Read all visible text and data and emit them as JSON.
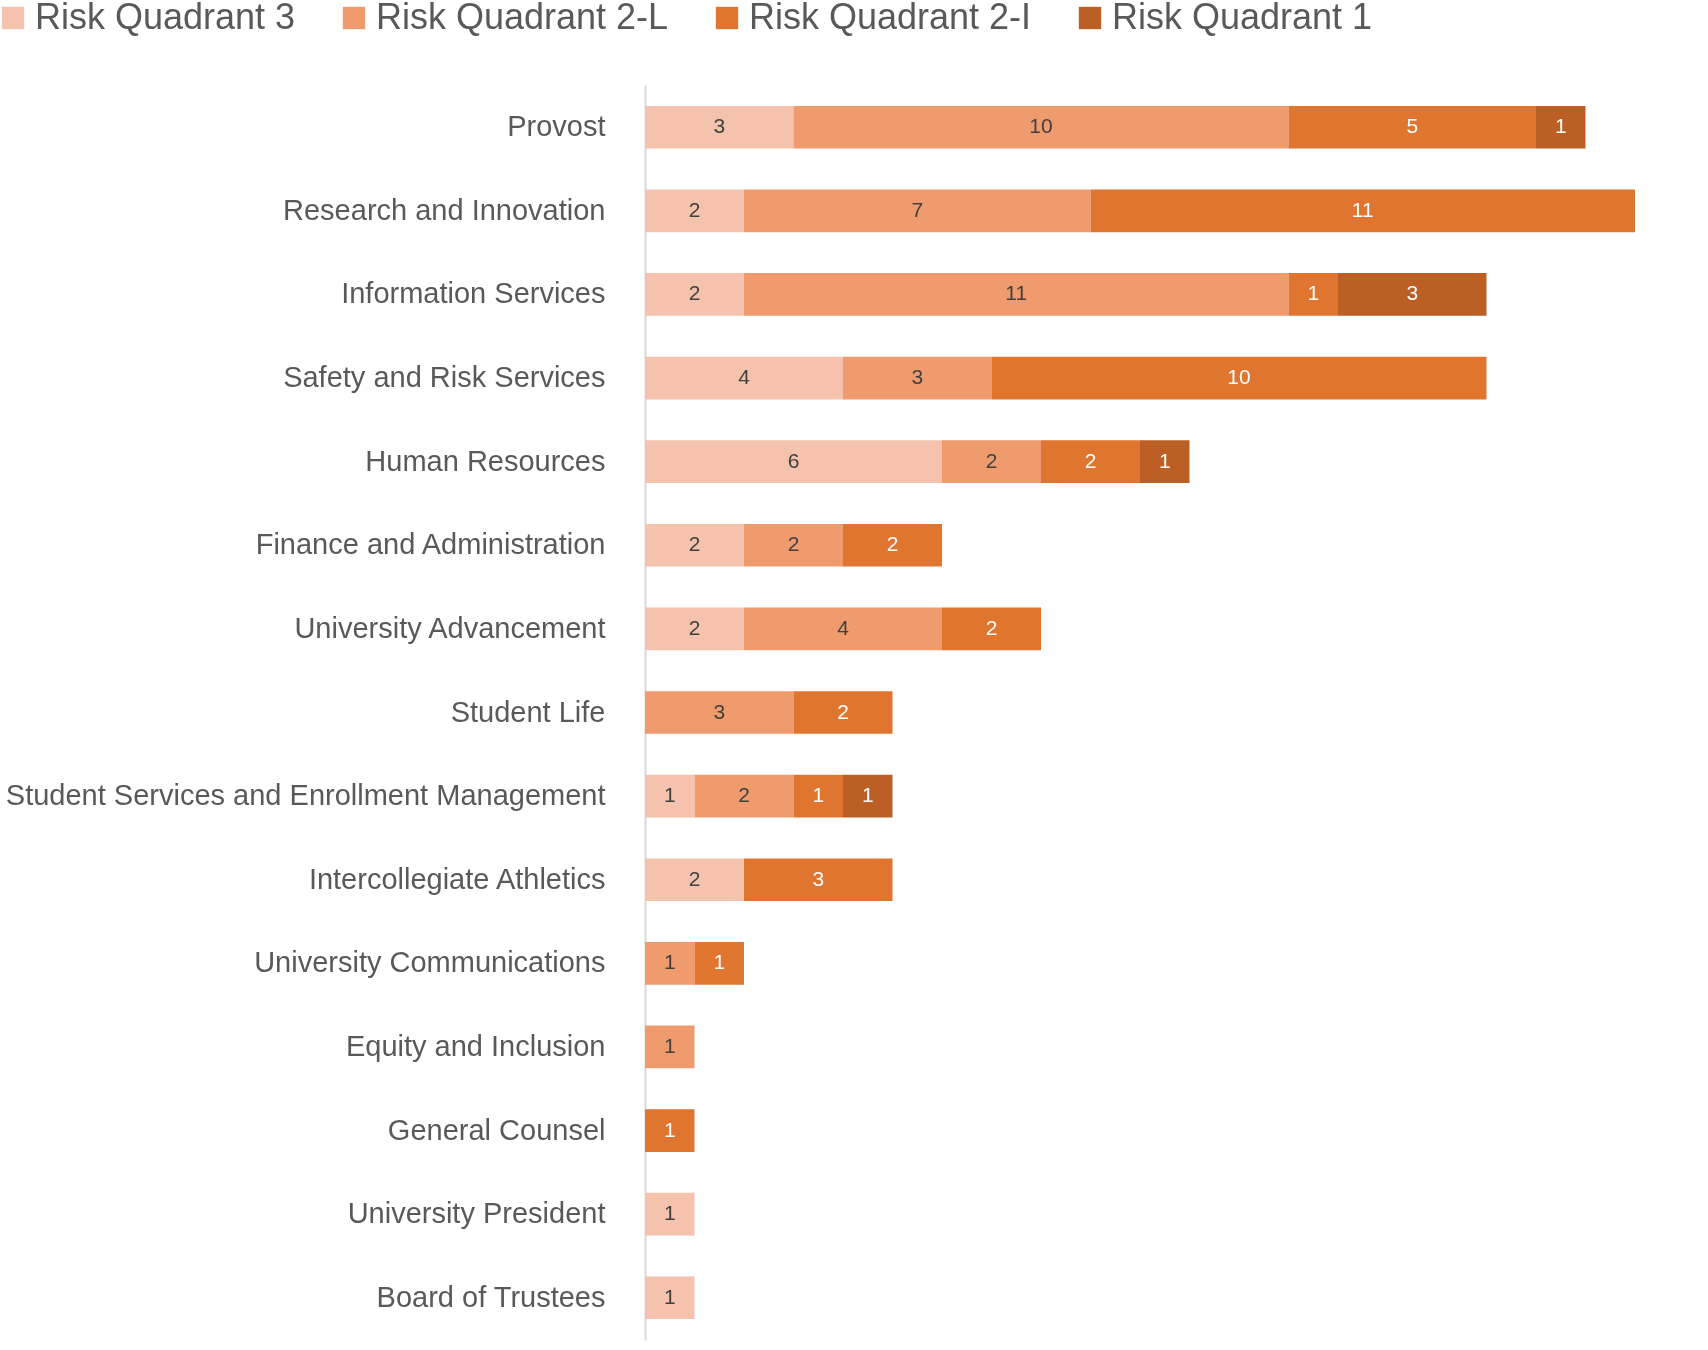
{
  "chart_data": {
    "type": "bar",
    "orientation": "horizontal",
    "stacked": true,
    "data_labels": true,
    "legend": "top",
    "grid": false,
    "categories": [
      "Provost",
      "Research and Innovation",
      "Information Services",
      "Safety and Risk Services",
      "Human Resources",
      "Finance and Administration",
      "University Advancement",
      "Student Life",
      "Student Services and Enrollment Management",
      "Intercollegiate Athletics",
      "University Communications",
      "Equity and Inclusion",
      "General Counsel",
      "University President",
      "Board of Trustees"
    ],
    "series": [
      {
        "name": "Risk Quadrant 3",
        "color": "#f4c2ad",
        "values": [
          3,
          2,
          2,
          4,
          6,
          2,
          2,
          null,
          1,
          2,
          null,
          null,
          null,
          1,
          1
        ]
      },
      {
        "name": "Risk Quadrant 2-L",
        "color": "#f09b6e",
        "values": [
          10,
          7,
          11,
          3,
          2,
          2,
          4,
          3,
          2,
          null,
          1,
          1,
          null,
          null,
          null
        ]
      },
      {
        "name": "Risk Quadrant 2-I",
        "color": "#e07530",
        "values": [
          5,
          11,
          1,
          10,
          2,
          2,
          2,
          2,
          1,
          3,
          1,
          null,
          1,
          null,
          null
        ]
      },
      {
        "name": "Risk Quadrant 1",
        "color": "#bc5f24",
        "values": [
          1,
          null,
          3,
          null,
          1,
          null,
          null,
          null,
          1,
          null,
          null,
          null,
          null,
          null,
          null
        ]
      }
    ]
  }
}
